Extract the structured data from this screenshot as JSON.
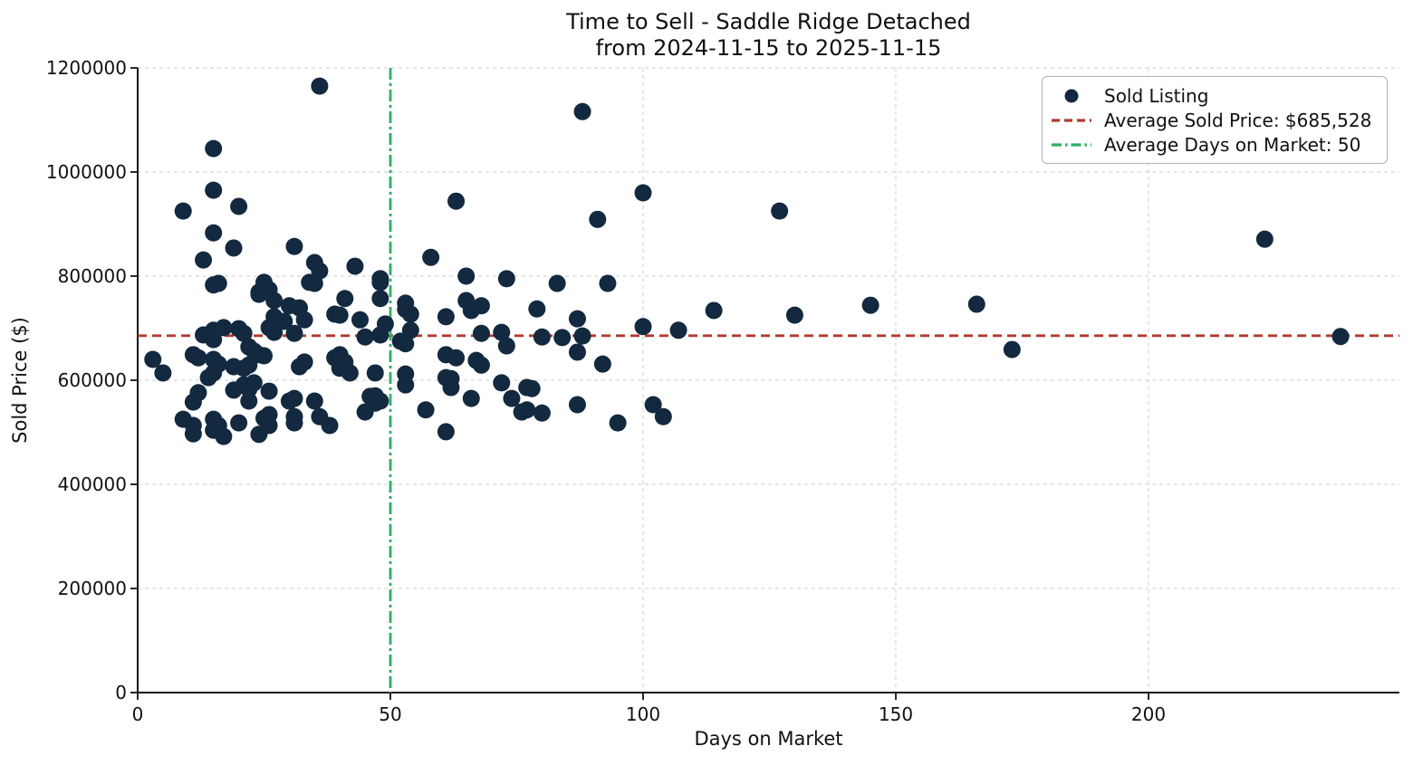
{
  "title": {
    "line1": "Time to Sell - Saddle Ridge Detached",
    "line2": "from 2024-11-15 to 2025-11-15"
  },
  "axes": {
    "xlabel": "Days on Market",
    "ylabel": "Sold Price ($)",
    "x_ticks": [
      0,
      50,
      100,
      150,
      200
    ],
    "x_tick_labels": [
      "0",
      "50",
      "100",
      "150",
      "200"
    ],
    "y_ticks": [
      0,
      200000,
      400000,
      600000,
      800000,
      1000000,
      1200000
    ],
    "y_tick_labels": [
      "0",
      "200000",
      "400000",
      "600000",
      "800000",
      "1000000",
      "1200000"
    ],
    "xlim": [
      0,
      250
    ],
    "ylim": [
      0,
      1200000
    ],
    "grid": true
  },
  "legend": {
    "items": [
      {
        "label": "Sold Listing",
        "marker": "dot"
      },
      {
        "label": "Average Sold Price: $685,528",
        "marker": "dashed-line"
      },
      {
        "label": "Average Days on Market: 50",
        "marker": "dashdot-line"
      }
    ]
  },
  "colors": {
    "point": "#12293f",
    "avg_price_line": "#b23a2f",
    "avg_days_line": "#2eae62",
    "grid": "#cccccc",
    "spine": "#111111",
    "text": "#111111",
    "legend_border": "#b3b3b3"
  },
  "chart_data": {
    "type": "scatter",
    "title": "Time to Sell - Saddle Ridge Detached from 2024-11-15 to 2025-11-15",
    "xlabel": "Days on Market",
    "ylabel": "Sold Price ($)",
    "xlim": [
      0,
      250
    ],
    "ylim": [
      0,
      1200000
    ],
    "grid": true,
    "legend_position": "upper right",
    "avg_sold_price": 685528,
    "avg_days_on_market": 50,
    "series": [
      {
        "name": "Sold Listing",
        "points": [
          [
            36,
            1165000
          ],
          [
            15,
            1045000
          ],
          [
            88,
            1116000
          ],
          [
            15,
            965000
          ],
          [
            20,
            934000
          ],
          [
            9,
            925000
          ],
          [
            15,
            883000
          ],
          [
            19,
            854000
          ],
          [
            13,
            831000
          ],
          [
            31,
            857000
          ],
          [
            35,
            826000
          ],
          [
            36,
            810000
          ],
          [
            43,
            819000
          ],
          [
            48,
            795000
          ],
          [
            63,
            944000
          ],
          [
            58,
            836000
          ],
          [
            65,
            800000
          ],
          [
            91,
            909000
          ],
          [
            100,
            960000
          ],
          [
            127,
            925000
          ],
          [
            223,
            871000
          ],
          [
            238,
            684000
          ],
          [
            130,
            725000
          ],
          [
            145,
            744000
          ],
          [
            166,
            746000
          ],
          [
            173,
            659000
          ],
          [
            114,
            734000
          ],
          [
            107,
            696000
          ],
          [
            100,
            703000
          ],
          [
            83,
            786000
          ],
          [
            93,
            786000
          ],
          [
            79,
            737000
          ],
          [
            87,
            718000
          ],
          [
            73,
            795000
          ],
          [
            15,
            783000
          ],
          [
            16,
            786000
          ],
          [
            25,
            788000
          ],
          [
            26,
            774000
          ],
          [
            24,
            765000
          ],
          [
            27,
            753000
          ],
          [
            34,
            788000
          ],
          [
            35,
            786000
          ],
          [
            48,
            788000
          ],
          [
            48,
            757000
          ],
          [
            41,
            757000
          ],
          [
            24,
            769000
          ],
          [
            30,
            743000
          ],
          [
            32,
            739000
          ],
          [
            27,
            722000
          ],
          [
            29,
            713000
          ],
          [
            33,
            716000
          ],
          [
            15,
            696000
          ],
          [
            17,
            701000
          ],
          [
            13,
            687000
          ],
          [
            15,
            678000
          ],
          [
            20,
            699000
          ],
          [
            21,
            690000
          ],
          [
            26,
            701000
          ],
          [
            27,
            692000
          ],
          [
            31,
            690000
          ],
          [
            39,
            727000
          ],
          [
            40,
            725000
          ],
          [
            44,
            716000
          ],
          [
            49,
            708000
          ],
          [
            45,
            683000
          ],
          [
            48,
            687000
          ],
          [
            53,
            748000
          ],
          [
            39,
            643000
          ],
          [
            22,
            664000
          ],
          [
            23,
            656000
          ],
          [
            24,
            649000
          ],
          [
            11,
            649000
          ],
          [
            12,
            643000
          ],
          [
            3,
            640000
          ],
          [
            5,
            614000
          ],
          [
            15,
            640000
          ],
          [
            16,
            631000
          ],
          [
            15,
            614000
          ],
          [
            14,
            605000
          ],
          [
            19,
            626000
          ],
          [
            21,
            623000
          ],
          [
            22,
            629000
          ],
          [
            25,
            647000
          ],
          [
            32,
            626000
          ],
          [
            33,
            635000
          ],
          [
            40,
            649000
          ],
          [
            41,
            635000
          ],
          [
            40,
            623000
          ],
          [
            42,
            614000
          ],
          [
            47,
            614000
          ],
          [
            53,
            612000
          ],
          [
            53,
            591000
          ],
          [
            21,
            591000
          ],
          [
            22,
            583000
          ],
          [
            23,
            595000
          ],
          [
            12,
            576000
          ],
          [
            11,
            558000
          ],
          [
            19,
            581000
          ],
          [
            22,
            560000
          ],
          [
            26,
            579000
          ],
          [
            30,
            560000
          ],
          [
            31,
            565000
          ],
          [
            31,
            518000
          ],
          [
            31,
            530000
          ],
          [
            35,
            560000
          ],
          [
            36,
            530000
          ],
          [
            38,
            513000
          ],
          [
            45,
            539000
          ],
          [
            47,
            570000
          ],
          [
            47,
            556000
          ],
          [
            9,
            525000
          ],
          [
            11,
            513000
          ],
          [
            11,
            497000
          ],
          [
            15,
            525000
          ],
          [
            16,
            513000
          ],
          [
            15,
            504000
          ],
          [
            17,
            492000
          ],
          [
            20,
            518000
          ],
          [
            25,
            527000
          ],
          [
            26,
            513000
          ],
          [
            24,
            496000
          ],
          [
            26,
            534000
          ],
          [
            46,
            569000
          ],
          [
            48,
            560000
          ],
          [
            57,
            543000
          ],
          [
            61,
            501000
          ],
          [
            61,
            605000
          ],
          [
            62,
            603000
          ],
          [
            62,
            586000
          ],
          [
            72,
            595000
          ],
          [
            77,
            586000
          ],
          [
            74,
            565000
          ],
          [
            76,
            539000
          ],
          [
            66,
            565000
          ],
          [
            78,
            584000
          ],
          [
            77,
            543000
          ],
          [
            80,
            537000
          ],
          [
            87,
            553000
          ],
          [
            95,
            518000
          ],
          [
            102,
            553000
          ],
          [
            104,
            530000
          ],
          [
            92,
            631000
          ],
          [
            87,
            654000
          ],
          [
            80,
            683000
          ],
          [
            84,
            682000
          ],
          [
            88,
            685000
          ],
          [
            53,
            736000
          ],
          [
            54,
            727000
          ],
          [
            54,
            696000
          ],
          [
            52,
            675000
          ],
          [
            53,
            670000
          ],
          [
            65,
            753000
          ],
          [
            68,
            743000
          ],
          [
            66,
            734000
          ],
          [
            61,
            722000
          ],
          [
            68,
            690000
          ],
          [
            72,
            692000
          ],
          [
            73,
            666000
          ],
          [
            61,
            649000
          ],
          [
            63,
            643000
          ],
          [
            67,
            638000
          ],
          [
            68,
            629000
          ]
        ]
      }
    ]
  }
}
